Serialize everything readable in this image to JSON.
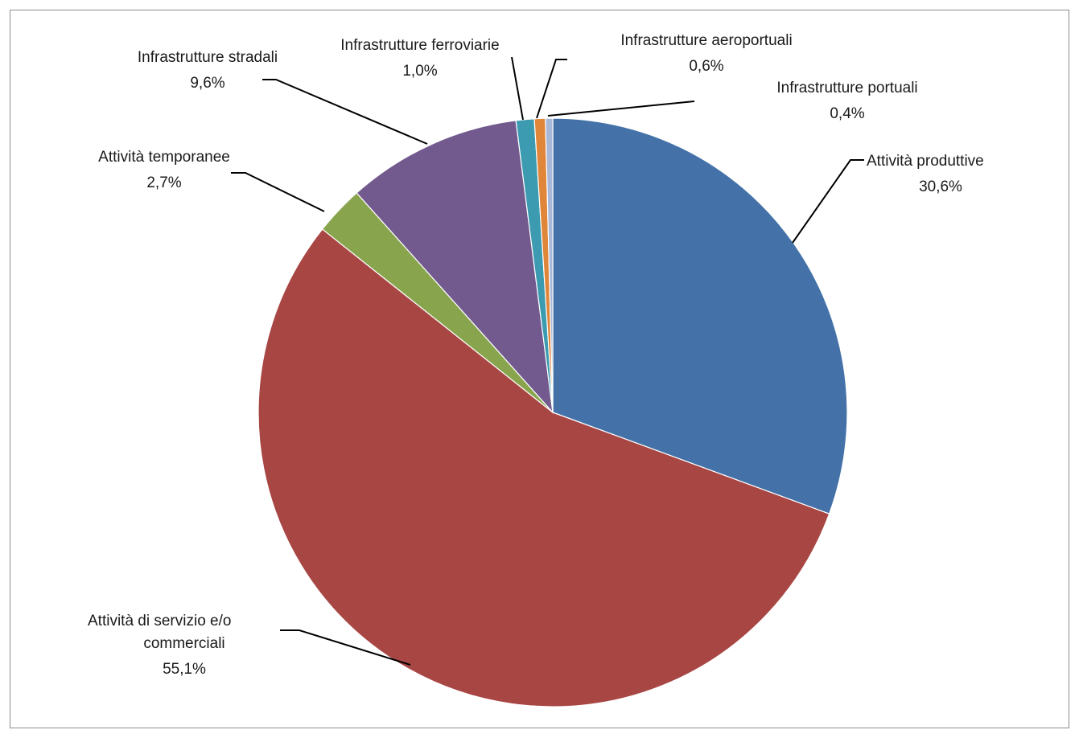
{
  "chart_data": {
    "type": "pie",
    "title": "",
    "slices": [
      {
        "name": "Attività produttive",
        "value": 30.6,
        "label": "30,6%",
        "color": "#4472A8"
      },
      {
        "name": "Attività di servizio e/o commerciali",
        "value": 55.1,
        "label": "55,1%",
        "color": "#A84644"
      },
      {
        "name": "Attività temporanee",
        "value": 2.7,
        "label": "2,7%",
        "color": "#88A54E"
      },
      {
        "name": "Infrastrutture stradali",
        "value": 9.6,
        "label": "9,6%",
        "color": "#725A8F"
      },
      {
        "name": "Infrastrutture ferroviarie",
        "value": 1.0,
        "label": "1,0%",
        "color": "#3C9BB0"
      },
      {
        "name": "Infrastrutture aeroportuali",
        "value": 0.6,
        "label": "0,6%",
        "color": "#E0863B"
      },
      {
        "name": "Infrastrutture portuali",
        "value": 0.4,
        "label": "0,4%",
        "color": "#A8B8D8"
      }
    ],
    "legend": "none"
  }
}
